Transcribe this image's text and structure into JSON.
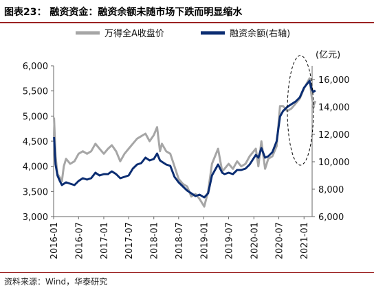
{
  "header": {
    "title": "图表23：  融资资金：融资余额未随市场下跌而明显缩水"
  },
  "footer": {
    "source": "资料来源：Wind，华泰研究"
  },
  "colors": {
    "accent_rule": "#9b2222",
    "series_index": "#a6a6a6",
    "series_margin": "#0b2d72",
    "circle": "#000000"
  },
  "chart_data": {
    "type": "line",
    "title": "",
    "legend": [
      "万得全A收盘价",
      "融资余额(右轴)"
    ],
    "legend_position": "top",
    "y_right_unit": "(亿元)",
    "x_tick_labels": [
      "2016-01",
      "2016-07",
      "2017-01",
      "2017-07",
      "2018-01",
      "2018-07",
      "2019-01",
      "2019-07",
      "2020-01",
      "2020-07",
      "2021-01"
    ],
    "x_range": [
      "2016-01",
      "2021-03"
    ],
    "y_left_range": [
      3000,
      6000
    ],
    "y_left_ticks": [
      "3,000",
      "3,500",
      "4,000",
      "4,500",
      "5,000",
      "5,500",
      "6,000"
    ],
    "y_right_range": [
      6000,
      17000
    ],
    "y_right_ticks": [
      "6,000",
      "8,000",
      "10,000",
      "12,000",
      "14,000",
      "16,000"
    ],
    "grid": false,
    "annotation": "dashed ellipse highlighting late-2020 to 2021 period",
    "series": [
      {
        "name": "万得全A收盘价",
        "axis": "left",
        "points": [
          [
            "2016-01-04",
            4970
          ],
          [
            "2016-01-15",
            4200
          ],
          [
            "2016-01-29",
            3850
          ],
          [
            "2016-02-15",
            3780
          ],
          [
            "2016-03-01",
            3700
          ],
          [
            "2016-03-15",
            4000
          ],
          [
            "2016-04-01",
            4150
          ],
          [
            "2016-05-01",
            4050
          ],
          [
            "2016-06-01",
            4100
          ],
          [
            "2016-07-01",
            4250
          ],
          [
            "2016-08-01",
            4300
          ],
          [
            "2016-09-01",
            4250
          ],
          [
            "2016-10-01",
            4300
          ],
          [
            "2016-11-01",
            4450
          ],
          [
            "2016-12-01",
            4350
          ],
          [
            "2017-01-01",
            4250
          ],
          [
            "2017-02-01",
            4350
          ],
          [
            "2017-03-01",
            4420
          ],
          [
            "2017-04-01",
            4300
          ],
          [
            "2017-05-01",
            4100
          ],
          [
            "2017-06-01",
            4250
          ],
          [
            "2017-07-01",
            4350
          ],
          [
            "2017-08-01",
            4450
          ],
          [
            "2017-09-01",
            4550
          ],
          [
            "2017-10-01",
            4600
          ],
          [
            "2017-11-01",
            4650
          ],
          [
            "2017-12-01",
            4500
          ],
          [
            "2018-01-01",
            4620
          ],
          [
            "2018-01-25",
            4780
          ],
          [
            "2018-02-15",
            4300
          ],
          [
            "2018-03-01",
            4450
          ],
          [
            "2018-04-01",
            4300
          ],
          [
            "2018-05-01",
            4250
          ],
          [
            "2018-06-01",
            4000
          ],
          [
            "2018-07-01",
            3750
          ],
          [
            "2018-08-01",
            3650
          ],
          [
            "2018-09-01",
            3600
          ],
          [
            "2018-10-01",
            3400
          ],
          [
            "2018-11-01",
            3450
          ],
          [
            "2018-12-01",
            3350
          ],
          [
            "2019-01-04",
            3200
          ],
          [
            "2019-02-01",
            3500
          ],
          [
            "2019-03-01",
            4050
          ],
          [
            "2019-04-15",
            4350
          ],
          [
            "2019-05-15",
            3900
          ],
          [
            "2019-06-01",
            3950
          ],
          [
            "2019-07-01",
            4050
          ],
          [
            "2019-08-01",
            3950
          ],
          [
            "2019-09-01",
            4100
          ],
          [
            "2019-10-01",
            4000
          ],
          [
            "2019-11-01",
            4050
          ],
          [
            "2019-12-01",
            4200
          ],
          [
            "2020-01-15",
            4350
          ],
          [
            "2020-02-03",
            4000
          ],
          [
            "2020-02-25",
            4500
          ],
          [
            "2020-03-23",
            3950
          ],
          [
            "2020-04-15",
            4150
          ],
          [
            "2020-05-15",
            4200
          ],
          [
            "2020-06-15",
            4400
          ],
          [
            "2020-07-10",
            5200
          ],
          [
            "2020-08-01",
            5200
          ],
          [
            "2020-09-01",
            5100
          ],
          [
            "2020-10-01",
            5150
          ],
          [
            "2020-11-01",
            5250
          ],
          [
            "2020-12-01",
            5350
          ],
          [
            "2021-01-01",
            5550
          ],
          [
            "2021-02-10",
            5750
          ],
          [
            "2021-02-25",
            5400
          ],
          [
            "2021-03-10",
            5200
          ],
          [
            "2021-03-25",
            5300
          ]
        ]
      },
      {
        "name": "融资余额(右轴)",
        "axis": "right",
        "points": [
          [
            "2016-01-04",
            11800
          ],
          [
            "2016-01-15",
            9800
          ],
          [
            "2016-01-29",
            9000
          ],
          [
            "2016-02-15",
            8600
          ],
          [
            "2016-03-01",
            8300
          ],
          [
            "2016-04-01",
            8500
          ],
          [
            "2016-05-01",
            8400
          ],
          [
            "2016-06-01",
            8300
          ],
          [
            "2016-07-01",
            8600
          ],
          [
            "2016-08-01",
            8800
          ],
          [
            "2016-09-01",
            8700
          ],
          [
            "2016-10-01",
            8800
          ],
          [
            "2016-11-01",
            9200
          ],
          [
            "2016-12-01",
            9000
          ],
          [
            "2017-01-01",
            9100
          ],
          [
            "2017-02-01",
            9100
          ],
          [
            "2017-03-01",
            9300
          ],
          [
            "2017-04-01",
            9100
          ],
          [
            "2017-05-01",
            8800
          ],
          [
            "2017-06-01",
            8900
          ],
          [
            "2017-07-01",
            9000
          ],
          [
            "2017-08-01",
            9500
          ],
          [
            "2017-09-01",
            9800
          ],
          [
            "2017-10-01",
            9900
          ],
          [
            "2017-11-01",
            10300
          ],
          [
            "2017-12-01",
            10100
          ],
          [
            "2018-01-01",
            10200
          ],
          [
            "2018-01-25",
            10600
          ],
          [
            "2018-02-15",
            10100
          ],
          [
            "2018-03-01",
            10000
          ],
          [
            "2018-04-01",
            9800
          ],
          [
            "2018-05-01",
            9700
          ],
          [
            "2018-06-01",
            8900
          ],
          [
            "2018-07-01",
            8500
          ],
          [
            "2018-08-01",
            8200
          ],
          [
            "2018-09-01",
            7900
          ],
          [
            "2018-10-01",
            7700
          ],
          [
            "2018-11-01",
            7500
          ],
          [
            "2018-12-01",
            7600
          ],
          [
            "2019-01-04",
            7400
          ],
          [
            "2019-02-01",
            7700
          ],
          [
            "2019-03-01",
            9000
          ],
          [
            "2019-04-15",
            9800
          ],
          [
            "2019-05-15",
            9200
          ],
          [
            "2019-06-01",
            9100
          ],
          [
            "2019-07-01",
            9200
          ],
          [
            "2019-08-01",
            9100
          ],
          [
            "2019-09-01",
            9400
          ],
          [
            "2019-10-01",
            9400
          ],
          [
            "2019-11-01",
            9500
          ],
          [
            "2019-12-01",
            9800
          ],
          [
            "2020-01-15",
            10500
          ],
          [
            "2020-02-03",
            10300
          ],
          [
            "2020-02-25",
            11000
          ],
          [
            "2020-03-23",
            10300
          ],
          [
            "2020-04-15",
            10400
          ],
          [
            "2020-05-15",
            10700
          ],
          [
            "2020-06-15",
            11500
          ],
          [
            "2020-07-10",
            13300
          ],
          [
            "2020-08-01",
            13700
          ],
          [
            "2020-09-01",
            14000
          ],
          [
            "2020-10-01",
            14200
          ],
          [
            "2020-11-01",
            14400
          ],
          [
            "2020-12-01",
            14700
          ],
          [
            "2021-01-01",
            15400
          ],
          [
            "2021-02-10",
            15900
          ],
          [
            "2021-02-25",
            15300
          ],
          [
            "2021-03-10",
            15100
          ],
          [
            "2021-03-25",
            15200
          ]
        ]
      }
    ]
  }
}
